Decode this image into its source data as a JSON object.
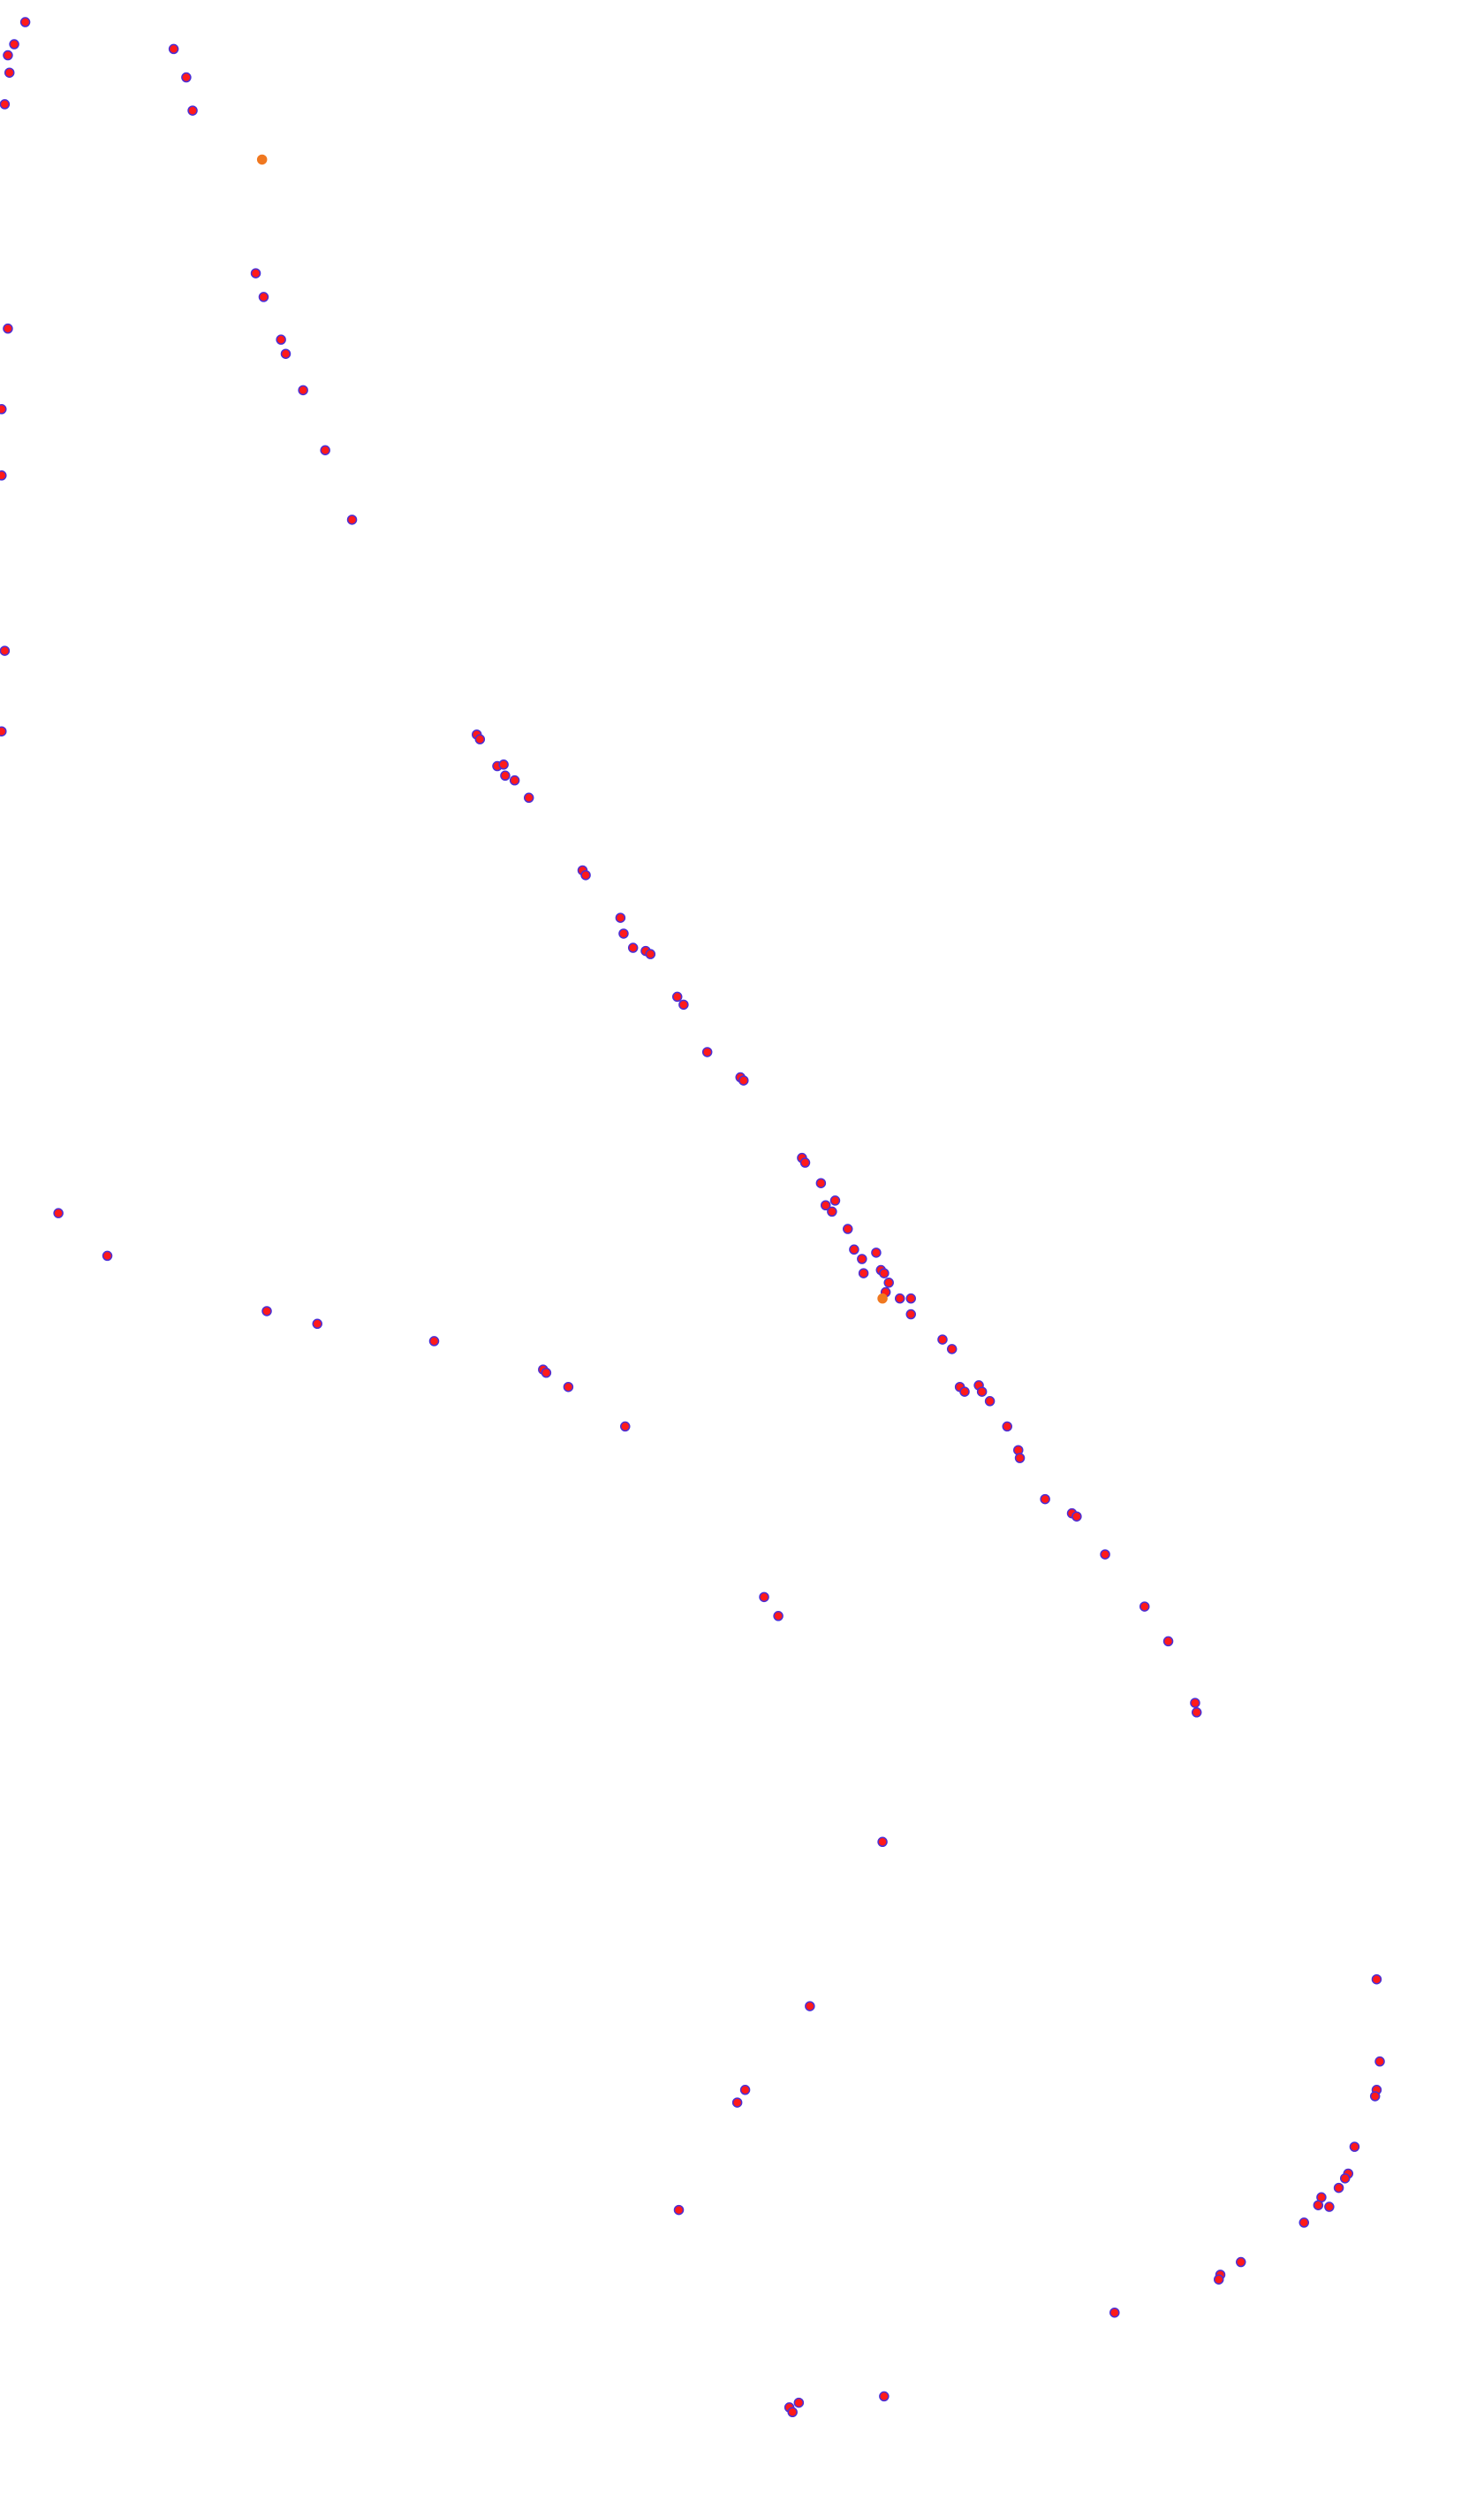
{
  "chart_data": {
    "type": "scatter",
    "xlim": [
      0,
      940
    ],
    "ylim": [
      0,
      1594
    ],
    "y_inverted": true,
    "series": [
      {
        "color": "#ff1a1a",
        "edgecolor": "#4b2fd6",
        "x": [
          5,
          9,
          16,
          6,
          3,
          110,
          118,
          122,
          162,
          167,
          178,
          181,
          192,
          206,
          223,
          5,
          1,
          1,
          3,
          1,
          302,
          304,
          315,
          319,
          320,
          326,
          335,
          369,
          371,
          393,
          395,
          401,
          409,
          412,
          429,
          433,
          448,
          469,
          471,
          508,
          510,
          520,
          523,
          529,
          527,
          537,
          541,
          546,
          547,
          555,
          558,
          560,
          563,
          561,
          570,
          577,
          577,
          597,
          603,
          608,
          611,
          620,
          622,
          627,
          638,
          645,
          646,
          662,
          679,
          682,
          700,
          725,
          740,
          757,
          758,
          37,
          68,
          169,
          201,
          275,
          344,
          346,
          360,
          396,
          484,
          493,
          559,
          513,
          472,
          467,
          430,
          872,
          874,
          872,
          871,
          858,
          854,
          852,
          848,
          837,
          835,
          842,
          826,
          786,
          773,
          772,
          706,
          560,
          506,
          500,
          502
        ],
        "values": [
          35,
          28,
          14,
          46,
          66,
          31,
          49,
          70,
          173,
          188,
          215,
          224,
          247,
          285,
          329,
          208,
          259,
          301,
          412,
          463,
          465,
          468,
          485,
          484,
          491,
          494,
          505,
          551,
          554,
          581,
          591,
          600,
          602,
          604,
          631,
          636,
          666,
          682,
          684,
          733,
          736,
          749,
          763,
          760,
          767,
          778,
          791,
          797,
          806,
          793,
          804,
          806,
          812,
          818,
          822,
          822,
          832,
          848,
          854,
          878,
          881,
          877,
          881,
          887,
          903,
          918,
          923,
          949,
          958,
          960,
          984,
          1017,
          1039,
          1078,
          1084,
          768,
          795,
          830,
          838,
          849,
          867,
          869,
          878,
          903,
          1011,
          1023,
          1166,
          1270,
          1323,
          1331,
          1399,
          1253,
          1305,
          1323,
          1327,
          1359,
          1376,
          1379,
          1385,
          1391,
          1396,
          1397,
          1407,
          1432,
          1440,
          1443,
          1464,
          1517,
          1521,
          1524,
          1527
        ]
      },
      {
        "color": "#f07820",
        "edgecolor": "#f07820",
        "x": [
          166,
          559
        ],
        "values": [
          101,
          822
        ]
      }
    ]
  }
}
